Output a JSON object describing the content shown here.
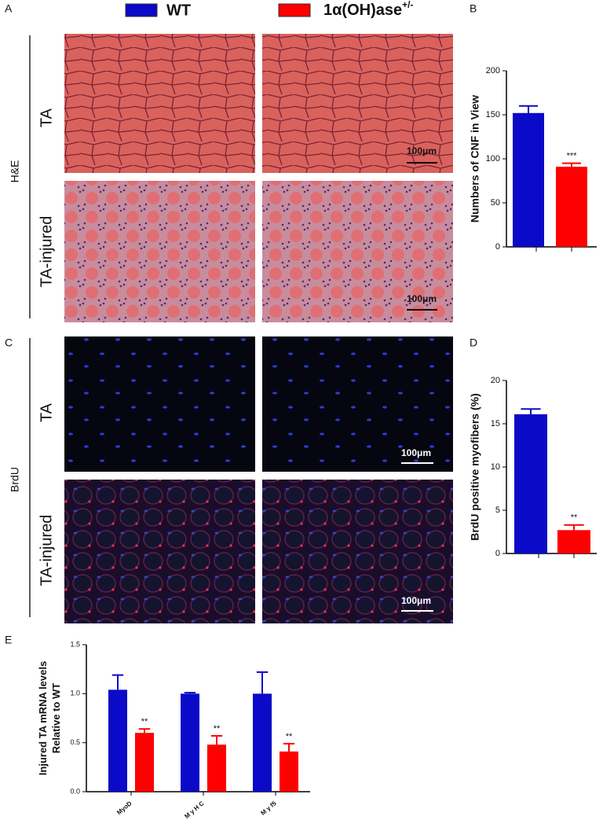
{
  "legend": [
    {
      "name": "WT",
      "color": "#0a0ac8"
    },
    {
      "name": "1α(OH)ase",
      "sup": "+/-",
      "color": "#ff0000"
    }
  ],
  "panel_labels": [
    "A",
    "B",
    "C",
    "D",
    "E"
  ],
  "he": {
    "stain": "H&E",
    "rows": [
      "TA",
      "TA-injured"
    ],
    "scale_bars": [
      "100μm",
      "100μm"
    ]
  },
  "brdu": {
    "stain": "BrdU",
    "rows": [
      "TA",
      "TA-injured"
    ],
    "scale_bars": [
      "100μm",
      "100μm"
    ]
  },
  "chart_data": [
    {
      "type": "bar",
      "ylabel": [
        "Numbers of CNF in View"
      ],
      "ylim": [
        0,
        200
      ],
      "yticks": [
        0,
        50,
        100,
        150,
        200
      ],
      "series": [
        {
          "color": "#0a0ac8",
          "values": [
            152
          ],
          "errors": [
            8
          ]
        },
        {
          "color": "#ff0000",
          "values": [
            91
          ],
          "errors": [
            4
          ],
          "significance": [
            "***"
          ]
        }
      ]
    },
    {
      "type": "bar",
      "ylabel": [
        "BrdU positive myofibers (%)"
      ],
      "ylim": [
        0,
        20
      ],
      "yticks": [
        0,
        5,
        10,
        15,
        20
      ],
      "series": [
        {
          "color": "#0a0ac8",
          "values": [
            16.1
          ],
          "errors": [
            0.6
          ]
        },
        {
          "color": "#ff0000",
          "values": [
            2.7
          ],
          "errors": [
            0.6
          ],
          "significance": [
            "**"
          ]
        }
      ]
    },
    {
      "type": "bar",
      "ylabel": [
        "Injured TA mRNA levels",
        "Relative to WT"
      ],
      "ylim": [
        0,
        1.5
      ],
      "yticks": [
        {
          "value": 0,
          "label": "0.0"
        },
        {
          "value": 0.5,
          "label": "0.5"
        },
        {
          "value": 1,
          "label": "1.0"
        },
        {
          "value": 1.5,
          "label": "1.5"
        }
      ],
      "categories": [
        "MyoD",
        "M y H C",
        "M y f5"
      ],
      "series": [
        {
          "color": "#0a0ac8",
          "values": [
            1.04,
            1.0,
            1.0
          ],
          "errors": [
            0.15,
            0.01,
            0.22
          ]
        },
        {
          "color": "#ff0000",
          "values": [
            0.6,
            0.48,
            0.41
          ],
          "errors": [
            0.04,
            0.09,
            0.08
          ],
          "significance": [
            "**",
            "**",
            "**"
          ]
        }
      ]
    }
  ]
}
